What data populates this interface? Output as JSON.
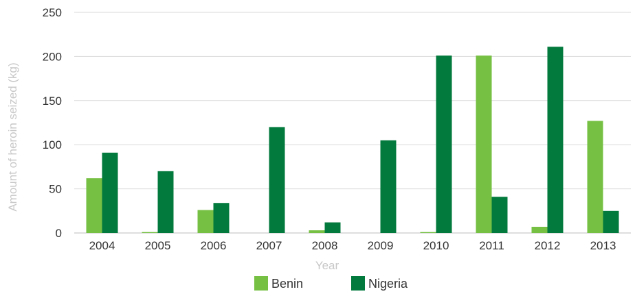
{
  "chart_data": {
    "type": "bar",
    "xlabel": "Year",
    "ylabel": "Amount of heroin seized (kg)",
    "ylim": [
      0,
      250
    ],
    "yticks": [
      0,
      50,
      100,
      150,
      200,
      250
    ],
    "grid": true,
    "legend_position": "bottom",
    "categories": [
      "2004",
      "2005",
      "2006",
      "2007",
      "2008",
      "2009",
      "2010",
      "2011",
      "2012",
      "2013"
    ],
    "series": [
      {
        "name": "Benin",
        "color": "#76c043",
        "values": [
          62,
          1,
          26,
          0,
          3,
          0,
          1,
          201,
          7,
          127
        ]
      },
      {
        "name": "Nigeria",
        "color": "#037a3d",
        "values": [
          91,
          70,
          34,
          120,
          12,
          105,
          201,
          41,
          211,
          25
        ]
      }
    ]
  }
}
